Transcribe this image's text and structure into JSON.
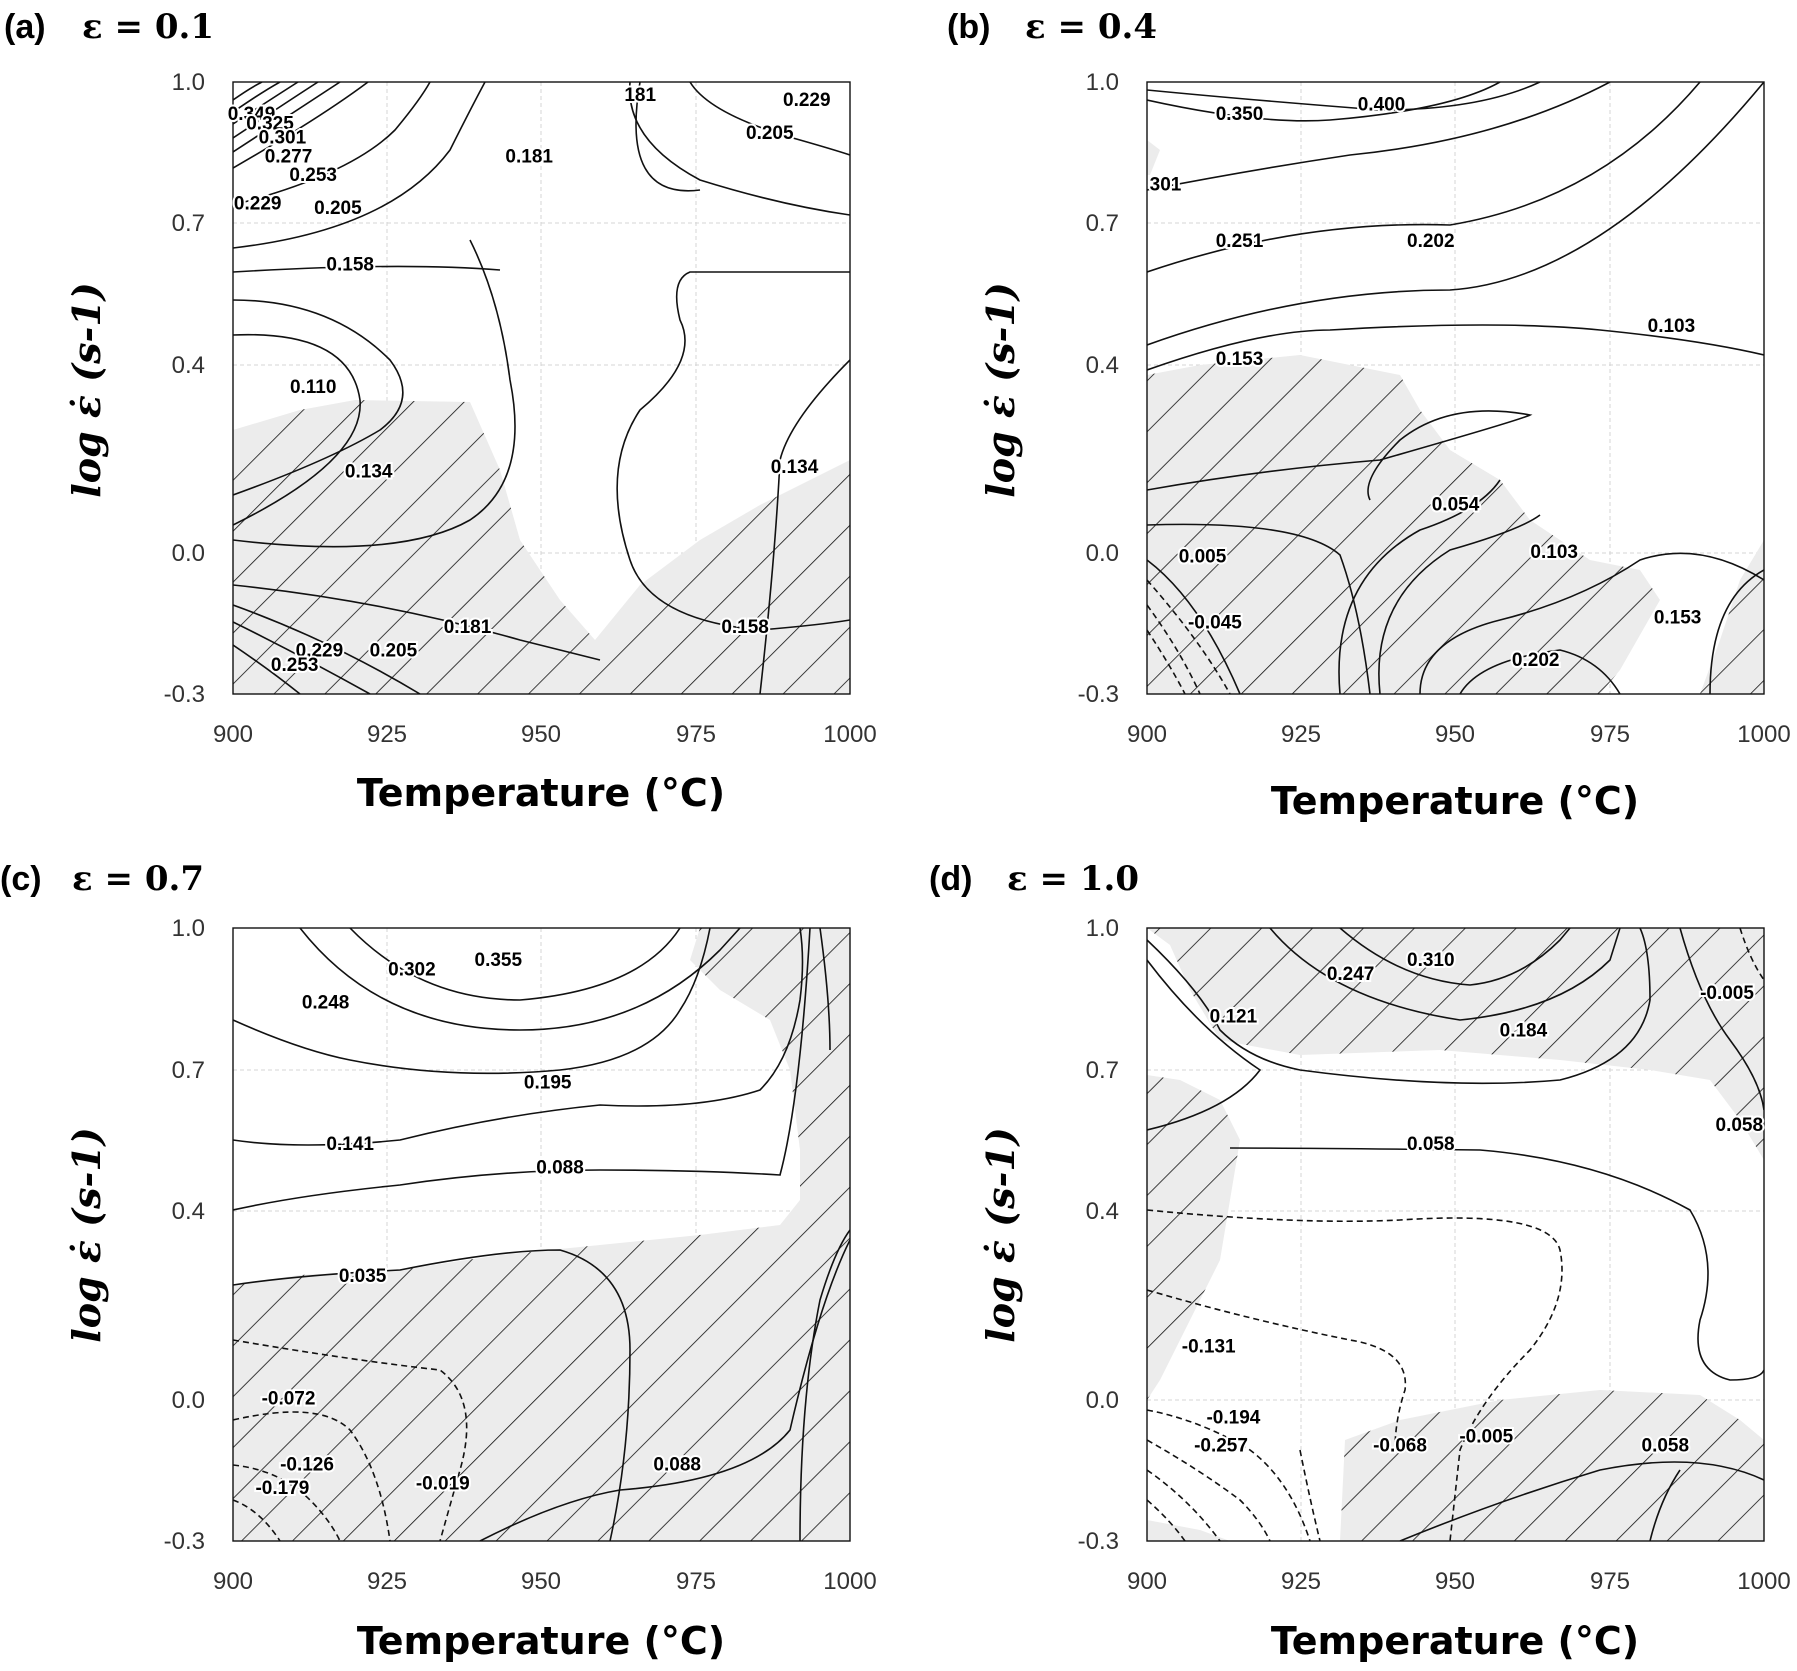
{
  "chart_data": [
    {
      "type": "contour",
      "panel_label": "(a)",
      "title": "ε = 0.1",
      "xlabel": "Temperature (°C)",
      "ylabel": "log ε̇ (s-1)",
      "xlim": [
        900,
        1000
      ],
      "ylim": [
        -0.3,
        1.0
      ],
      "xticks": [
        "900",
        "925",
        "950",
        "975",
        "1000"
      ],
      "yticks": [
        "-0.3",
        "0.0",
        "0.4",
        "0.7",
        "1.0"
      ],
      "grid": true,
      "contour_labels": [
        {
          "text": "0.349",
          "x": 903,
          "y": 0.93
        },
        {
          "text": "0.325",
          "x": 906,
          "y": 0.91
        },
        {
          "text": "0.301",
          "x": 908,
          "y": 0.88
        },
        {
          "text": "0.277",
          "x": 909,
          "y": 0.84
        },
        {
          "text": "0.253",
          "x": 913,
          "y": 0.8
        },
        {
          "text": "0.229",
          "x": 904,
          "y": 0.74
        },
        {
          "text": "0.205",
          "x": 917,
          "y": 0.73
        },
        {
          "text": "0.181",
          "x": 948,
          "y": 0.84
        },
        {
          "text": "181",
          "x": 966,
          "y": 0.97
        },
        {
          "text": "0.229",
          "x": 993,
          "y": 0.96
        },
        {
          "text": "0.205",
          "x": 987,
          "y": 0.89
        },
        {
          "text": "0.158",
          "x": 919,
          "y": 0.61
        },
        {
          "text": "0.110",
          "x": 913,
          "y": 0.35
        },
        {
          "text": "0.134",
          "x": 922,
          "y": 0.17
        },
        {
          "text": "0.134",
          "x": 991,
          "y": 0.18
        },
        {
          "text": "0.181",
          "x": 938,
          "y": -0.16
        },
        {
          "text": "0.205",
          "x": 926,
          "y": -0.21
        },
        {
          "text": "0.229",
          "x": 914,
          "y": -0.21
        },
        {
          "text": "0.253",
          "x": 910,
          "y": -0.24
        },
        {
          "text": "0.158",
          "x": 983,
          "y": -0.16
        }
      ]
    },
    {
      "type": "contour",
      "panel_label": "(b)",
      "title": "ε = 0.4",
      "xlabel": "Temperature (°C)",
      "ylabel": "log ε̇ (s-1)",
      "xlim": [
        900,
        1000
      ],
      "ylim": [
        -0.3,
        1.0
      ],
      "xticks": [
        "900",
        "925",
        "950",
        "975",
        "1000"
      ],
      "yticks": [
        "-0.3",
        "0.0",
        "0.4",
        "0.7",
        "1.0"
      ],
      "grid": true,
      "contour_labels": [
        {
          "text": "0.400",
          "x": 938,
          "y": 0.95
        },
        {
          "text": "0.350",
          "x": 915,
          "y": 0.93
        },
        {
          "text": "301",
          "x": 903,
          "y": 0.78
        },
        {
          "text": "0.251",
          "x": 915,
          "y": 0.66
        },
        {
          "text": "0.202",
          "x": 946,
          "y": 0.66
        },
        {
          "text": "0.103",
          "x": 985,
          "y": 0.48
        },
        {
          "text": "0.153",
          "x": 915,
          "y": 0.41
        },
        {
          "text": "0.054",
          "x": 950,
          "y": 0.1
        },
        {
          "text": "0.005",
          "x": 909,
          "y": -0.01
        },
        {
          "text": "-0.045",
          "x": 911,
          "y": -0.15
        },
        {
          "text": "0.103",
          "x": 966,
          "y": 0.0
        },
        {
          "text": "0.153",
          "x": 986,
          "y": -0.14
        },
        {
          "text": "0.202",
          "x": 963,
          "y": -0.23
        }
      ]
    },
    {
      "type": "contour",
      "panel_label": "(c)",
      "title": "ε = 0.7",
      "xlabel": "Temperature (°C)",
      "ylabel": "log ε̇ (s-1)",
      "xlim": [
        900,
        1000
      ],
      "ylim": [
        -0.3,
        1.0
      ],
      "xticks": [
        "900",
        "925",
        "950",
        "975",
        "1000"
      ],
      "yticks": [
        "-0.3",
        "0.0",
        "0.4",
        "0.7",
        "1.0"
      ],
      "grid": true,
      "contour_labels": [
        {
          "text": "0.355",
          "x": 943,
          "y": 0.93
        },
        {
          "text": "0.302",
          "x": 929,
          "y": 0.91
        },
        {
          "text": "0.248",
          "x": 915,
          "y": 0.84
        },
        {
          "text": "0.195",
          "x": 951,
          "y": 0.67
        },
        {
          "text": "0.141",
          "x": 919,
          "y": 0.54
        },
        {
          "text": "0.088",
          "x": 953,
          "y": 0.49
        },
        {
          "text": "0.035",
          "x": 921,
          "y": 0.26
        },
        {
          "text": "-0.072",
          "x": 909,
          "y": 0.0
        },
        {
          "text": "-0.126",
          "x": 912,
          "y": -0.14
        },
        {
          "text": "-0.179",
          "x": 908,
          "y": -0.19
        },
        {
          "text": "-0.019",
          "x": 934,
          "y": -0.18
        },
        {
          "text": "0.088",
          "x": 972,
          "y": -0.14
        }
      ]
    },
    {
      "type": "contour",
      "panel_label": "(d)",
      "title": "ε = 1.0",
      "xlabel": "Temperature (°C)",
      "ylabel": "log ε̇ (s-1)",
      "xlim": [
        900,
        1000
      ],
      "ylim": [
        -0.3,
        1.0
      ],
      "xticks": [
        "900",
        "925",
        "950",
        "975",
        "1000"
      ],
      "yticks": [
        "-0.3",
        "0.0",
        "0.4",
        "0.7",
        "1.0"
      ],
      "grid": true,
      "contour_labels": [
        {
          "text": "0.310",
          "x": 946,
          "y": 0.93
        },
        {
          "text": "0.247",
          "x": 933,
          "y": 0.9
        },
        {
          "text": "0.121",
          "x": 914,
          "y": 0.81
        },
        {
          "text": "0.184",
          "x": 961,
          "y": 0.78
        },
        {
          "text": "-0.005",
          "x": 994,
          "y": 0.86
        },
        {
          "text": "0.058",
          "x": 996,
          "y": 0.58
        },
        {
          "text": "0.058",
          "x": 946,
          "y": 0.54
        },
        {
          "text": "-0.131",
          "x": 910,
          "y": 0.11
        },
        {
          "text": "-0.194",
          "x": 914,
          "y": -0.04
        },
        {
          "text": "-0.257",
          "x": 912,
          "y": -0.1
        },
        {
          "text": "-0.068",
          "x": 941,
          "y": -0.1
        },
        {
          "text": "-0.005",
          "x": 955,
          "y": -0.08
        },
        {
          "text": "0.058",
          "x": 984,
          "y": -0.1
        }
      ]
    }
  ]
}
